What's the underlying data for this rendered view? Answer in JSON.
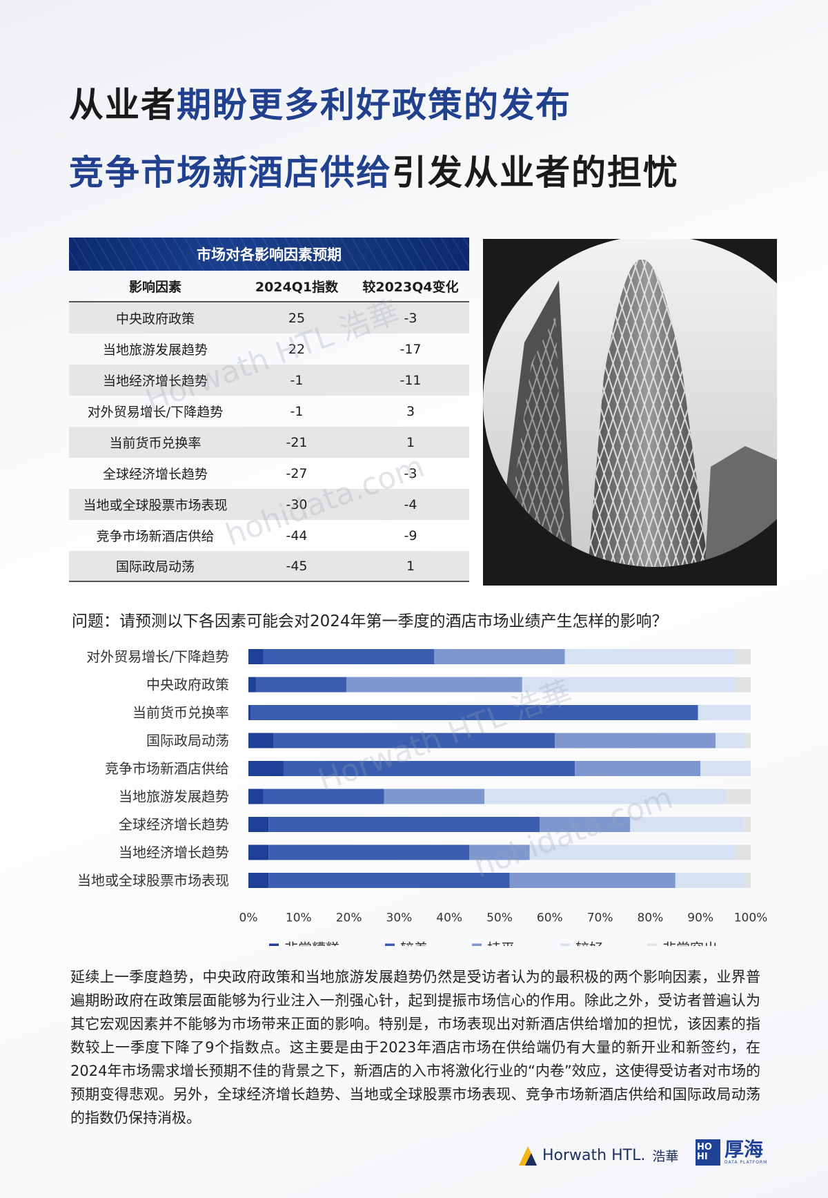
{
  "title": {
    "line1_dark": "从业者",
    "line1_blue": "期盼更多利好政策的发布",
    "line2_blue": "竞争市场新酒店供给",
    "line2_dark": "引发从业者的担忧"
  },
  "table": {
    "title": "市场对各影响因素预期",
    "headers": [
      "影响因素",
      "2024Q1指数",
      "较2023Q4变化"
    ],
    "rows": [
      {
        "factor": "中央政府政策",
        "index": "25",
        "change": "-3"
      },
      {
        "factor": "当地旅游发展趋势",
        "index": "22",
        "change": "-17"
      },
      {
        "factor": "当地经济增长趋势",
        "index": "-1",
        "change": "-11"
      },
      {
        "factor": "对外贸易增长/下降趋势",
        "index": "-1",
        "change": "3"
      },
      {
        "factor": "当前货币兑换率",
        "index": "-21",
        "change": "1"
      },
      {
        "factor": "全球经济增长趋势",
        "index": "-27",
        "change": "-3"
      },
      {
        "factor": "当地或全球股票市场表现",
        "index": "-30",
        "change": "-4"
      },
      {
        "factor": "竞争市场新酒店供给",
        "index": "-44",
        "change": "-9"
      },
      {
        "factor": "国际政局动荡",
        "index": "-45",
        "change": "1"
      }
    ]
  },
  "question": "问题：请预测以下各因素可能会对2024年第一季度的酒店市场业绩产生怎样的影响？",
  "chart_data": {
    "type": "bar",
    "orientation": "horizontal",
    "stacked": true,
    "percent": true,
    "categories": [
      "对外贸易增长/下降趋势",
      "中央政府政策",
      "当前货币兑换率",
      "国际政局动荡",
      "竞争市场新酒店供给",
      "当地旅游发展趋势",
      "全球经济增长趋势",
      "当地经济增长趋势",
      "当地或全球股票市场表现"
    ],
    "series": [
      {
        "name": "非常糟糕",
        "color": "#1f3f96",
        "values": [
          3,
          1.5,
          0.5,
          5,
          7,
          3,
          4,
          4,
          4
        ]
      },
      {
        "name": "较差",
        "color": "#3b5daf",
        "values": [
          34,
          18,
          89,
          56,
          58,
          24,
          54,
          40,
          48
        ]
      },
      {
        "name": "持平",
        "color": "#7e98cf",
        "values": [
          26,
          35,
          0,
          32,
          25,
          20,
          18,
          12,
          33
        ]
      },
      {
        "name": "较好",
        "color": "#d6e1f1",
        "values": [
          34,
          42.5,
          10.5,
          6,
          10,
          48,
          22.5,
          41,
          14
        ]
      },
      {
        "name": "非常突出",
        "color": "#e2e2e2",
        "values": [
          3,
          3,
          0,
          1,
          0,
          5,
          1.5,
          3,
          1
        ]
      }
    ],
    "xlim": [
      0,
      100
    ],
    "xticks": [
      "0%",
      "10%",
      "20%",
      "30%",
      "40%",
      "50%",
      "60%",
      "70%",
      "80%",
      "90%",
      "100%"
    ],
    "legend": "bottom"
  },
  "body": "延续上一季度趋势，中央政府政策和当地旅游发展趋势仍然是受访者认为的最积极的两个影响因素，业界普遍期盼政府在政策层面能够为行业注入一剂强心针，起到提振市场信心的作用。除此之外，受访者普遍认为其它宏观因素并不能够为市场带来正面的影响。特别是，市场表现出对新酒店供给增加的担忧，该因素的指数较上一季度下降了9个指数点。这主要是由于2023年酒店市场在供给端仍有大量的新开业和新签约，在2024年市场需求增长预期不佳的背景之下，新酒店的入市将激化行业的“内卷”效应，这使得受访者对市场的预期变得悲观。另外，全球经济增长趋势、当地或全球股票市场表现、竞争市场新酒店供给和国际政局动荡的指数仍保持消极。",
  "footer": {
    "horwath": "Horwath HTL.",
    "horwath_cn": "浩華",
    "hohi_mark": "HO HI",
    "hohi_cn": "厚海",
    "hohi_sub": "DATA PLATFORM"
  },
  "watermarks": [
    "Horwath HTL 浩華",
    "hohidata.com",
    "Horwath HTL 浩華",
    "hohidata.com"
  ]
}
